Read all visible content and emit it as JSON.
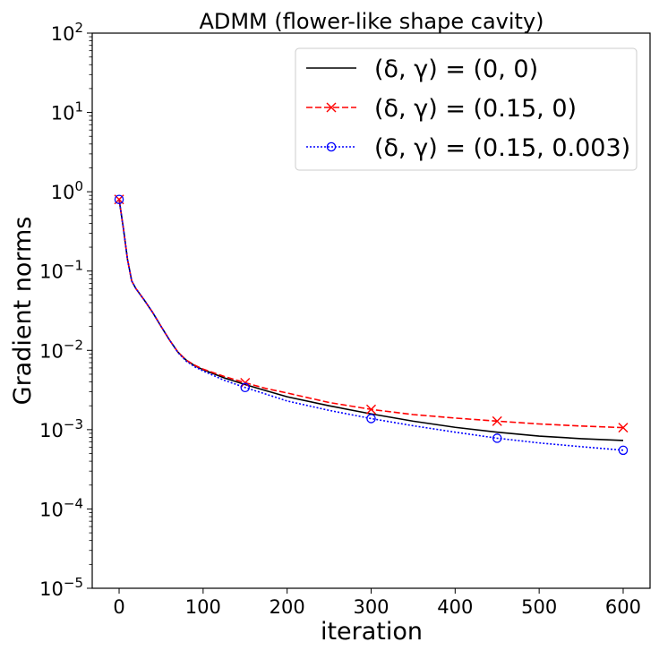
{
  "chart_data": {
    "type": "line",
    "title": "ADMM (flower-like shape cavity)",
    "xlabel": "iteration",
    "ylabel": "Gradient norms",
    "xlim": [
      -32,
      632
    ],
    "ylim": [
      1e-05,
      100
    ],
    "yscale": "log",
    "grid": false,
    "legend_position": "top-right",
    "x_ticks": [
      0,
      100,
      200,
      300,
      400,
      500,
      600
    ],
    "x_tick_labels": [
      "0",
      "100",
      "200",
      "300",
      "400",
      "500",
      "600"
    ],
    "y_ticks": [
      {
        "value": 1e-05,
        "base": "10",
        "exp": "−5"
      },
      {
        "value": 0.0001,
        "base": "10",
        "exp": "−4"
      },
      {
        "value": 0.001,
        "base": "10",
        "exp": "−3"
      },
      {
        "value": 0.01,
        "base": "10",
        "exp": "−2"
      },
      {
        "value": 0.1,
        "base": "10",
        "exp": "−1"
      },
      {
        "value": 1,
        "base": "10",
        "exp": "0"
      },
      {
        "value": 10,
        "base": "10",
        "exp": "1"
      },
      {
        "value": 100,
        "base": "10",
        "exp": "2"
      }
    ],
    "series": [
      {
        "name": "(δ, γ) = (0, 0)",
        "color": "#000000",
        "line_style": "solid",
        "marker": "none",
        "x": [
          0,
          5,
          10,
          15,
          20,
          30,
          40,
          50,
          60,
          70,
          80,
          90,
          100,
          125,
          150,
          175,
          200,
          250,
          300,
          350,
          400,
          450,
          500,
          550,
          600
        ],
        "y": [
          0.8,
          0.35,
          0.14,
          0.075,
          0.06,
          0.043,
          0.03,
          0.02,
          0.0135,
          0.0095,
          0.0075,
          0.0064,
          0.0057,
          0.0045,
          0.0037,
          0.0031,
          0.0026,
          0.002,
          0.00158,
          0.00128,
          0.00107,
          0.00093,
          0.00083,
          0.00077,
          0.00073
        ]
      },
      {
        "name": "(δ, γ) = (0.15, 0)",
        "color": "#ff0000",
        "line_style": "dashed",
        "marker": "x",
        "x": [
          0,
          5,
          10,
          15,
          20,
          30,
          40,
          50,
          60,
          70,
          80,
          90,
          100,
          125,
          150,
          175,
          200,
          250,
          300,
          350,
          400,
          450,
          500,
          550,
          600
        ],
        "y": [
          0.8,
          0.35,
          0.14,
          0.075,
          0.06,
          0.043,
          0.03,
          0.02,
          0.0135,
          0.0095,
          0.0075,
          0.0065,
          0.0058,
          0.0047,
          0.0039,
          0.0033,
          0.0029,
          0.0022,
          0.0018,
          0.00155,
          0.0014,
          0.00128,
          0.00118,
          0.00111,
          0.00106
        ],
        "marker_x": [
          0,
          150,
          300,
          450,
          600
        ]
      },
      {
        "name": "(δ, γ) = (0.15, 0.003)",
        "color": "#0000ff",
        "line_style": "dotted",
        "marker": "circle",
        "x": [
          0,
          5,
          10,
          15,
          20,
          30,
          40,
          50,
          60,
          70,
          80,
          90,
          100,
          125,
          150,
          175,
          200,
          250,
          300,
          350,
          400,
          450,
          500,
          550,
          600
        ],
        "y": [
          0.8,
          0.35,
          0.14,
          0.075,
          0.06,
          0.043,
          0.03,
          0.02,
          0.0135,
          0.0094,
          0.0073,
          0.0062,
          0.0055,
          0.0042,
          0.0034,
          0.0028,
          0.0023,
          0.00175,
          0.00138,
          0.00112,
          0.00093,
          0.00078,
          0.00068,
          0.00061,
          0.00055
        ],
        "marker_x": [
          0,
          150,
          300,
          450,
          600
        ]
      }
    ]
  }
}
